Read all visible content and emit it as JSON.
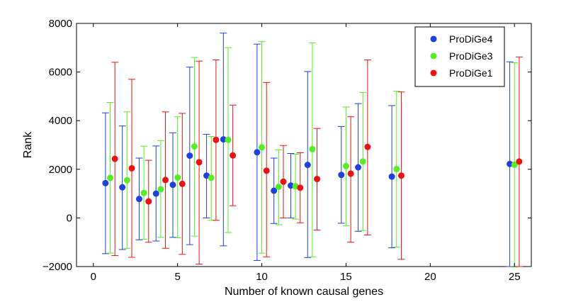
{
  "chart_data": {
    "type": "scatter",
    "title": "",
    "xlabel": "Number of known causal genes",
    "ylabel": "Rank",
    "xlim": [
      -1,
      26
    ],
    "ylim": [
      -2000,
      8000
    ],
    "xticks": [
      0,
      5,
      10,
      15,
      20,
      25
    ],
    "yticks": [
      -2000,
      0,
      2000,
      4000,
      6000,
      8000
    ],
    "xtick_labels": [
      "0",
      "5",
      "10",
      "15",
      "20",
      "25"
    ],
    "ytick_labels": [
      "−2000",
      "0",
      "2000",
      "4000",
      "6000",
      "8000"
    ],
    "legend_position": "top-right",
    "series": [
      {
        "name": "ProDiGe4",
        "color": "#1f3fe0",
        "x": [
          1,
          2,
          3,
          4,
          5,
          6,
          7,
          8,
          10,
          11,
          12,
          13,
          15,
          16,
          18,
          25
        ],
        "y": [
          1430,
          1260,
          780,
          1000,
          1360,
          2560,
          1740,
          3230,
          2700,
          1120,
          1330,
          2180,
          1770,
          2080,
          1700,
          2220
        ],
        "err_low": [
          -1470,
          -1300,
          -900,
          -950,
          -800,
          -1100,
          0,
          -1150,
          -1750,
          -230,
          0,
          -1630,
          -220,
          -550,
          -1230,
          -2000
        ],
        "err_high": [
          4320,
          3780,
          2460,
          2960,
          3500,
          6200,
          3440,
          7600,
          7150,
          2460,
          2650,
          6020,
          3760,
          4700,
          4620,
          6420
        ]
      },
      {
        "name": "ProDiGe3",
        "color": "#55ee22",
        "x": [
          1,
          2,
          3,
          4,
          5,
          6,
          7,
          8,
          10,
          11,
          12,
          13,
          15,
          16,
          18,
          25
        ],
        "y": [
          1650,
          1550,
          1030,
          1180,
          1660,
          2940,
          1650,
          3210,
          2900,
          1280,
          1300,
          2830,
          2130,
          2320,
          2010,
          2190
        ],
        "err_low": [
          -1450,
          -1250,
          -880,
          -800,
          -820,
          -750,
          -100,
          -600,
          -1450,
          -280,
          -50,
          -1600,
          -320,
          -520,
          -1200,
          -2020
        ],
        "err_high": [
          4750,
          4360,
          2950,
          3180,
          4160,
          6600,
          3350,
          7000,
          7250,
          2800,
          2620,
          7200,
          4560,
          5160,
          5210,
          6380
        ]
      },
      {
        "name": "ProDiGe1",
        "color": "#ee1111",
        "x": [
          1,
          2,
          3,
          4,
          5,
          6,
          7,
          8,
          10,
          11,
          12,
          13,
          15,
          16,
          18,
          25
        ],
        "y": [
          2430,
          2040,
          680,
          1560,
          1400,
          2290,
          3210,
          2570,
          1940,
          1490,
          1240,
          1600,
          1820,
          2920,
          1740,
          2320
        ],
        "err_low": [
          -1550,
          -1620,
          -1000,
          -1250,
          -1500,
          -1900,
          -100,
          500,
          -1600,
          0,
          -200,
          -500,
          -1000,
          -700,
          -1700,
          -2000
        ],
        "err_high": [
          6400,
          5700,
          2370,
          4360,
          4300,
          6450,
          6500,
          4640,
          5570,
          2980,
          2680,
          3680,
          4160,
          6500,
          5180,
          6620
        ]
      }
    ]
  }
}
